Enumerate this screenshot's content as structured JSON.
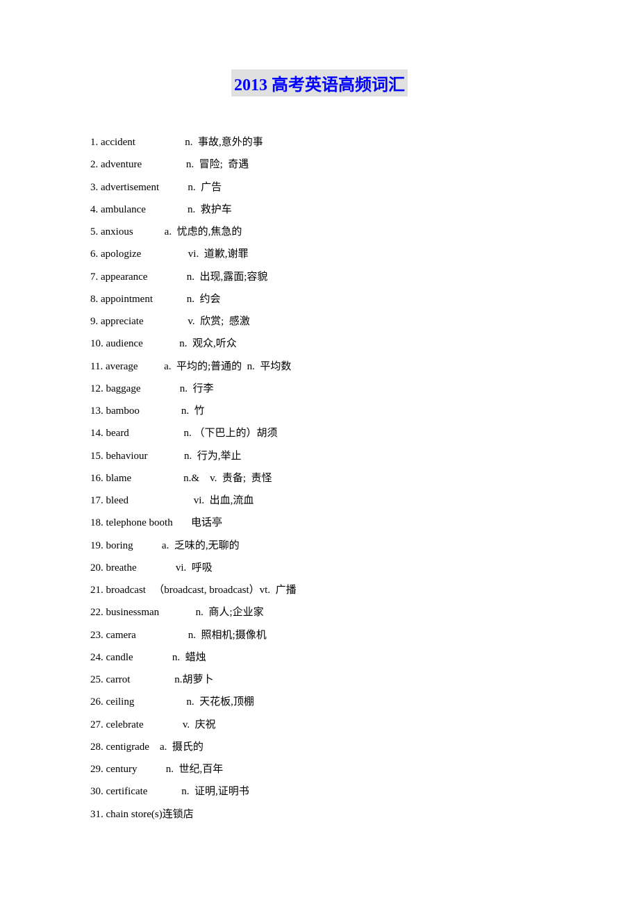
{
  "title": "2013 高考英语高频词汇",
  "title_color": "#0000ff",
  "title_bg": "#e0e0e0",
  "title_fontsize": 24,
  "body_fontsize": 15,
  "line_height": 2.15,
  "text_color": "#000000",
  "background_color": "#ffffff",
  "items": [
    "1. accident                   n.  事故,意外的事",
    "2. adventure                 n.  冒险;  奇遇",
    "3. advertisement           n.  广告",
    "4. ambulance                n.  救护车",
    "5. anxious            a.  忧虑的,焦急的",
    "6. apologize                  vi.  道歉,谢罪",
    "7. appearance               n.  出现,露面;容貌",
    "8. appointment             n.  约会",
    "9. appreciate                 v.  欣赏;  感激",
    "10. audience              n.  观众,听众",
    "11. average          a.  平均的;普通的  n.  平均数",
    "12. baggage               n.  行李",
    "13. bamboo                n.  竹",
    "14. beard                     n. （下巴上的）胡须",
    "15. behaviour              n.  行为,举止",
    "16. blame                    n.&    v.  责备;  责怪",
    "17. bleed                         vi.  出血,流血",
    "18. telephone booth       电话亭",
    "19. boring           a.  乏味的,无聊的",
    "20. breathe               vi.  呼吸",
    "21. broadcast   （broadcast, broadcast）vt.  广播",
    "22. businessman              n.  商人;企业家",
    "23. camera                    n.  照相机;摄像机",
    "24. candle               n.  蜡烛",
    "25. carrot                 n.胡萝卜",
    "26. ceiling                    n.  天花板,顶棚",
    "27. celebrate               v.  庆祝",
    "28. centigrade    a.  摄氏的",
    "29. century           n.  世纪,百年",
    "30. certificate             n.  证明,证明书",
    "31. chain store(s)连锁店"
  ]
}
